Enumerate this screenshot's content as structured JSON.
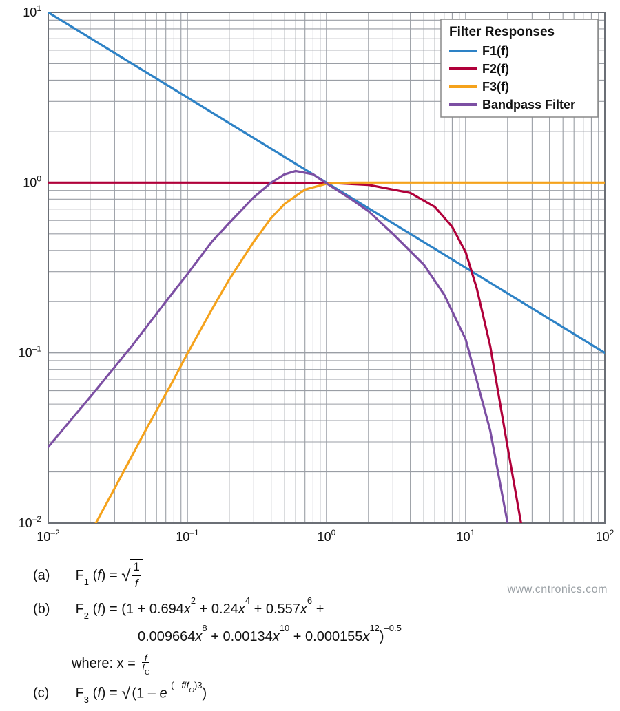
{
  "chart": {
    "type": "line-loglog",
    "background_color": "#ffffff",
    "plot_background_color": "#ffffff",
    "plot_border_color": "#6b6f76",
    "plot_border_width": 2,
    "gridline_color": "#9a9ea5",
    "gridline_width": 1.1,
    "axis_label_color": "#111111",
    "axis_label_fontsize": 18,
    "xlim": [
      0.01,
      100
    ],
    "ylim": [
      0.01,
      10
    ],
    "xticks_major": [
      0.01,
      0.1,
      1,
      10,
      100
    ],
    "xtick_labels": [
      "10⁻²",
      "10⁻¹",
      "10⁰",
      "10¹",
      "10²"
    ],
    "yticks_major": [
      0.01,
      0.1,
      1,
      10
    ],
    "ytick_labels": [
      "10⁻²",
      "10⁻¹",
      "10⁰",
      "10¹"
    ],
    "legend": {
      "title": "Filter Responses",
      "position": "upper-right",
      "box_border_color": "#888888",
      "box_fill_color": "#ffffff",
      "line_sample_width": 3,
      "items": [
        {
          "label": "F1(f)",
          "color": "#2d82c6"
        },
        {
          "label": "F2(f)",
          "color": "#b0003a"
        },
        {
          "label": "F3(f)",
          "color": "#f5a21b"
        },
        {
          "label": "Bandpass Filter",
          "color": "#7c4fa3"
        }
      ]
    },
    "series": [
      {
        "name": "F1(f)",
        "label": "F1(f)",
        "color": "#2d82c6",
        "line_width": 3.2,
        "data": [
          [
            0.01,
            10
          ],
          [
            0.1,
            3.1623
          ],
          [
            1,
            1
          ],
          [
            10,
            0.31623
          ],
          [
            100,
            0.1
          ]
        ]
      },
      {
        "name": "F2(f)",
        "label": "F2(f)",
        "color": "#b0003a",
        "line_width": 3.2,
        "data": [
          [
            0.01,
            1
          ],
          [
            0.1,
            1
          ],
          [
            1,
            0.998
          ],
          [
            2,
            0.97
          ],
          [
            4,
            0.87
          ],
          [
            6,
            0.72
          ],
          [
            8,
            0.55
          ],
          [
            10,
            0.39
          ],
          [
            12,
            0.24
          ],
          [
            15,
            0.11
          ],
          [
            20,
            0.028
          ],
          [
            25,
            0.01
          ]
        ]
      },
      {
        "name": "F3(f)",
        "label": "F3(f)",
        "color": "#f5a21b",
        "line_width": 3.2,
        "data": [
          [
            0.022,
            0.01
          ],
          [
            0.03,
            0.016
          ],
          [
            0.05,
            0.035
          ],
          [
            0.08,
            0.07
          ],
          [
            0.1,
            0.099
          ],
          [
            0.15,
            0.18
          ],
          [
            0.2,
            0.27
          ],
          [
            0.3,
            0.45
          ],
          [
            0.4,
            0.62
          ],
          [
            0.5,
            0.75
          ],
          [
            0.7,
            0.91
          ],
          [
            1,
            0.985
          ],
          [
            1.5,
            1
          ],
          [
            2,
            1
          ],
          [
            10,
            1
          ],
          [
            100,
            1
          ]
        ]
      },
      {
        "name": "Bandpass",
        "label": "Bandpass Filter",
        "color": "#7c4fa3",
        "line_width": 3.2,
        "data": [
          [
            0.01,
            0.028
          ],
          [
            0.02,
            0.055
          ],
          [
            0.04,
            0.11
          ],
          [
            0.07,
            0.2
          ],
          [
            0.1,
            0.29
          ],
          [
            0.15,
            0.45
          ],
          [
            0.2,
            0.58
          ],
          [
            0.3,
            0.82
          ],
          [
            0.4,
            1.0
          ],
          [
            0.5,
            1.12
          ],
          [
            0.6,
            1.17
          ],
          [
            0.8,
            1.12
          ],
          [
            1,
            0.99
          ],
          [
            1.5,
            0.8
          ],
          [
            2,
            0.68
          ],
          [
            3,
            0.5
          ],
          [
            5,
            0.33
          ],
          [
            7,
            0.22
          ],
          [
            10,
            0.12
          ],
          [
            15,
            0.035
          ],
          [
            20,
            0.01
          ]
        ]
      }
    ]
  },
  "equations": {
    "a_label": "(a)",
    "a_name": "F₁ (f) =",
    "a_frac_num": "1",
    "a_frac_den": "f",
    "b_label": "(b)",
    "b_name": "F₂ (f) =",
    "b_line1": "(1 + 0.694x² + 0.24x⁴ + 0.557x⁶ +",
    "b_line2": "0.009664x⁸ + 0.00134x¹⁰ + 0.000155x¹²)⁻⁰·⁵",
    "b_where": "where: x =",
    "b_where_num": "f",
    "b_where_den": "fᴄ",
    "c_label": "(c)",
    "c_name": "F₃ (f) =",
    "c_body": "(1 – e (– f/fₒ)³)"
  },
  "watermark": "www.cntronics.com"
}
